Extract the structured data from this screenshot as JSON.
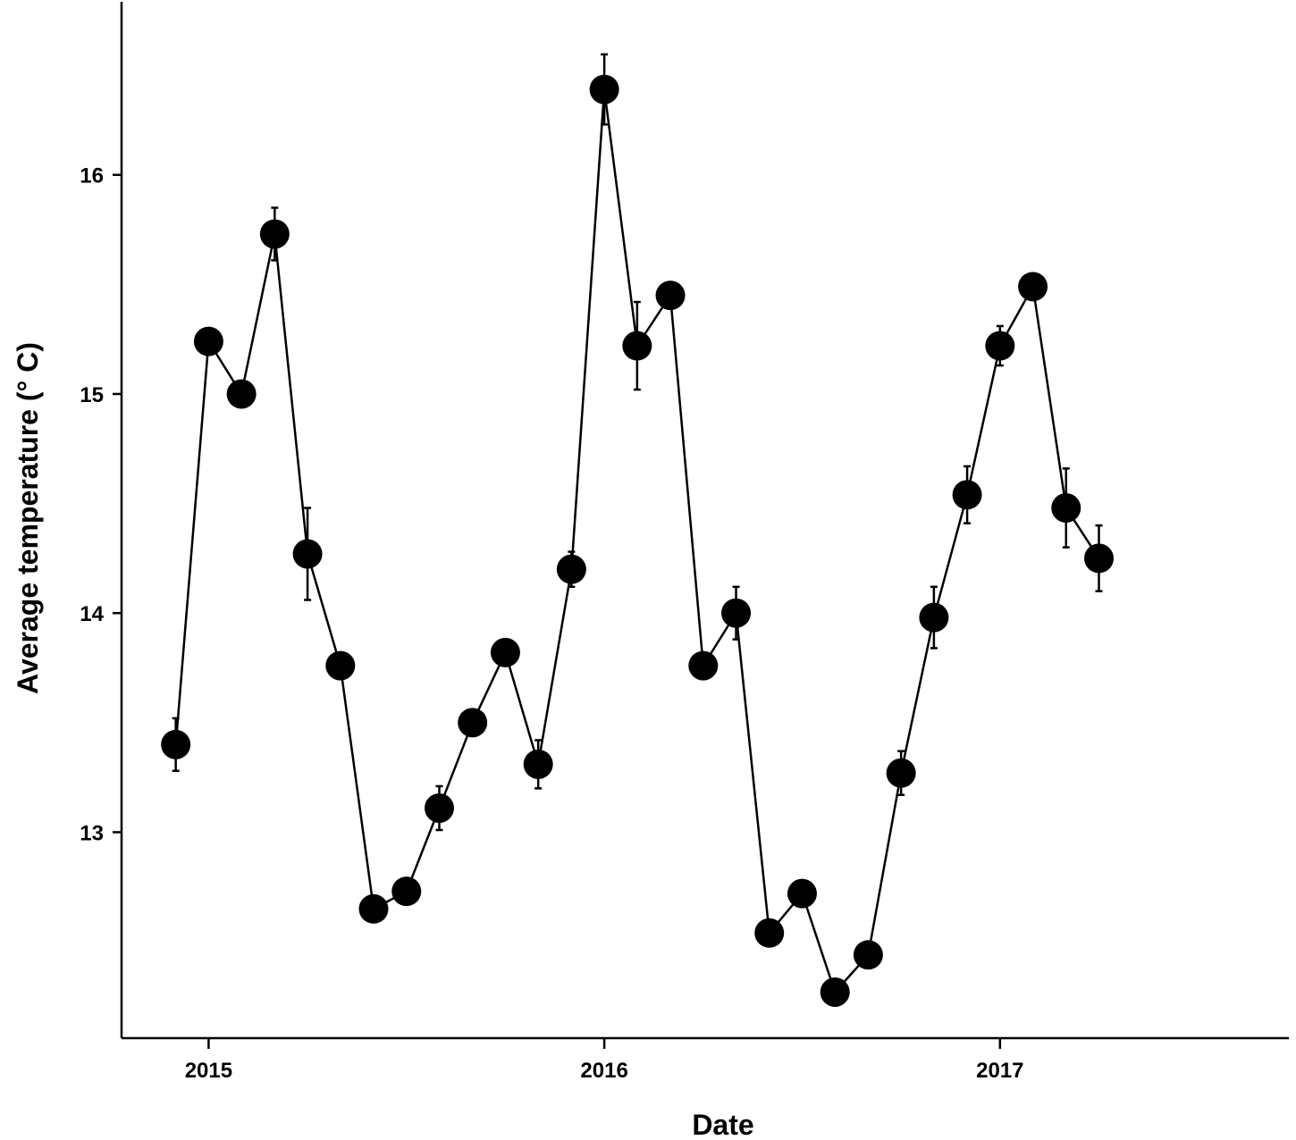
{
  "chart_data": {
    "type": "line",
    "title": "",
    "xlabel": "Date",
    "ylabel": "Average temperature (° C)",
    "x_ticks": [
      {
        "label": "2015",
        "value": 2015.0
      },
      {
        "label": "2016",
        "value": 2016.0
      },
      {
        "label": "2017",
        "value": 2017.0
      }
    ],
    "y_ticks": [
      13,
      14,
      15,
      16
    ],
    "xlim": [
      2014.78,
      2017.73
    ],
    "ylim": [
      12.06,
      16.79
    ],
    "grid": false,
    "legend": "none",
    "colors": {
      "line": "#000000",
      "marker": "#000000"
    },
    "series": [
      {
        "points": [
          {
            "x": 2014.917,
            "y": 13.4,
            "err_up": 0.12,
            "err_down": 0.12
          },
          {
            "x": 2015.0,
            "y": 15.24,
            "err_up": 0.0,
            "err_down": 0.0
          },
          {
            "x": 2015.083,
            "y": 15.0,
            "err_up": 0.0,
            "err_down": 0.0
          },
          {
            "x": 2015.167,
            "y": 15.73,
            "err_up": 0.12,
            "err_down": 0.12
          },
          {
            "x": 2015.25,
            "y": 14.27,
            "err_up": 0.21,
            "err_down": 0.21
          },
          {
            "x": 2015.333,
            "y": 13.76,
            "err_up": 0.0,
            "err_down": 0.0
          },
          {
            "x": 2015.417,
            "y": 12.65,
            "err_up": 0.0,
            "err_down": 0.0
          },
          {
            "x": 2015.5,
            "y": 12.73,
            "err_up": 0.0,
            "err_down": 0.0
          },
          {
            "x": 2015.583,
            "y": 13.11,
            "err_up": 0.1,
            "err_down": 0.1
          },
          {
            "x": 2015.667,
            "y": 13.5,
            "err_up": 0.0,
            "err_down": 0.0
          },
          {
            "x": 2015.75,
            "y": 13.82,
            "err_up": 0.0,
            "err_down": 0.0
          },
          {
            "x": 2015.833,
            "y": 13.31,
            "err_up": 0.11,
            "err_down": 0.11
          },
          {
            "x": 2015.917,
            "y": 14.2,
            "err_up": 0.08,
            "err_down": 0.08
          },
          {
            "x": 2016.0,
            "y": 16.39,
            "err_up": 0.16,
            "err_down": 0.16
          },
          {
            "x": 2016.083,
            "y": 15.22,
            "err_up": 0.2,
            "err_down": 0.2
          },
          {
            "x": 2016.167,
            "y": 15.45,
            "err_up": 0.0,
            "err_down": 0.0
          },
          {
            "x": 2016.25,
            "y": 13.76,
            "err_up": 0.0,
            "err_down": 0.0
          },
          {
            "x": 2016.333,
            "y": 14.0,
            "err_up": 0.12,
            "err_down": 0.12
          },
          {
            "x": 2016.417,
            "y": 12.54,
            "err_up": 0.0,
            "err_down": 0.0
          },
          {
            "x": 2016.5,
            "y": 12.72,
            "err_up": 0.0,
            "err_down": 0.0
          },
          {
            "x": 2016.583,
            "y": 12.27,
            "err_up": 0.0,
            "err_down": 0.0
          },
          {
            "x": 2016.667,
            "y": 12.44,
            "err_up": 0.0,
            "err_down": 0.0
          },
          {
            "x": 2016.75,
            "y": 13.27,
            "err_up": 0.1,
            "err_down": 0.1
          },
          {
            "x": 2016.833,
            "y": 13.98,
            "err_up": 0.14,
            "err_down": 0.14
          },
          {
            "x": 2016.917,
            "y": 14.54,
            "err_up": 0.13,
            "err_down": 0.13
          },
          {
            "x": 2017.0,
            "y": 15.22,
            "err_up": 0.09,
            "err_down": 0.09
          },
          {
            "x": 2017.083,
            "y": 15.49,
            "err_up": 0.0,
            "err_down": 0.0
          },
          {
            "x": 2017.167,
            "y": 14.48,
            "err_up": 0.18,
            "err_down": 0.18
          },
          {
            "x": 2017.25,
            "y": 14.25,
            "err_up": 0.15,
            "err_down": 0.15
          }
        ]
      }
    ]
  }
}
